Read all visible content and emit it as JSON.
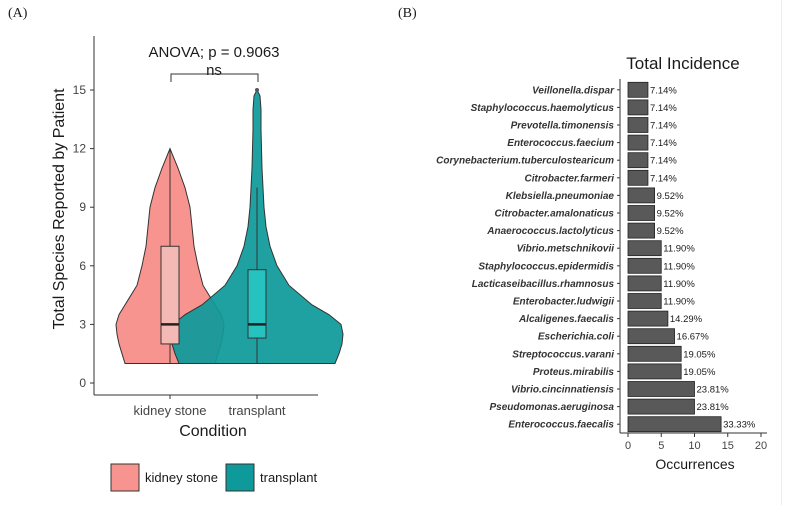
{
  "panel_a_label": "(A)",
  "panel_b_label": "(B)",
  "colors": {
    "kidney": "#F8948F",
    "transplant": "#0E9A9B",
    "kidney_box": "#F4B8B5",
    "transplant_box": "#25C2C0",
    "bar": "#595959",
    "axis": "#333333",
    "text": "#1a1a1a"
  },
  "chart_data": [
    {
      "type": "violin",
      "title": "",
      "annotation": "ANOVA; p = 0.9063",
      "significance": "ns",
      "xlabel": "Condition",
      "ylabel": "Total Species Reported by Patient",
      "categories": [
        "kidney stone",
        "transplant"
      ],
      "ylim": [
        0,
        17
      ],
      "yticks": [
        0,
        3,
        6,
        9,
        12,
        15
      ],
      "boxes": [
        {
          "name": "kidney stone",
          "min": 1,
          "q1": 2,
          "median": 3,
          "q3": 7,
          "max": 12
        },
        {
          "name": "transplant",
          "min": 1,
          "q1": 2.3,
          "median": 3,
          "q3": 5.8,
          "max": 10,
          "outliers": [
            15
          ]
        }
      ],
      "legend": {
        "position": "bottom",
        "entries": [
          "kidney stone",
          "transplant"
        ]
      }
    },
    {
      "type": "bar",
      "orientation": "horizontal",
      "title": "Total Incidence",
      "xlabel": "Occurrences",
      "ylabel": "",
      "xlim": [
        0,
        21
      ],
      "xticks": [
        0,
        5,
        10,
        15,
        20
      ],
      "categories": [
        "Veillonella.dispar",
        "Staphylococcus.haemolyticus",
        "Prevotella.timonensis",
        "Enterococcus.faecium",
        "Corynebacterium.tuberculostearicum",
        "Citrobacter.farmeri",
        "Klebsiella.pneumoniae",
        "Citrobacter.amalonaticus",
        "Anaerococcus.lactolyticus",
        "Vibrio.metschnikovii",
        "Staphylococcus.epidermidis",
        "Lacticaseibacillus.rhamnosus",
        "Enterobacter.ludwigii",
        "Alcaligenes.faecalis",
        "Escherichia.coli",
        "Streptococcus.varani",
        "Proteus.mirabilis",
        "Vibrio.cincinnatiensis",
        "Pseudomonas.aeruginosa",
        "Enterococcus.faecalis"
      ],
      "values": [
        3,
        3,
        3,
        3,
        3,
        3,
        4,
        4,
        4,
        5,
        5,
        5,
        5,
        6,
        7,
        8,
        8,
        10,
        10,
        14
      ],
      "labels": [
        "7.14%",
        "7.14%",
        "7.14%",
        "7.14%",
        "7.14%",
        "7.14%",
        "9.52%",
        "9.52%",
        "9.52%",
        "11.90%",
        "11.90%",
        "11.90%",
        "11.90%",
        "14.29%",
        "16.67%",
        "19.05%",
        "19.05%",
        "23.81%",
        "23.81%",
        "33.33%"
      ]
    }
  ]
}
